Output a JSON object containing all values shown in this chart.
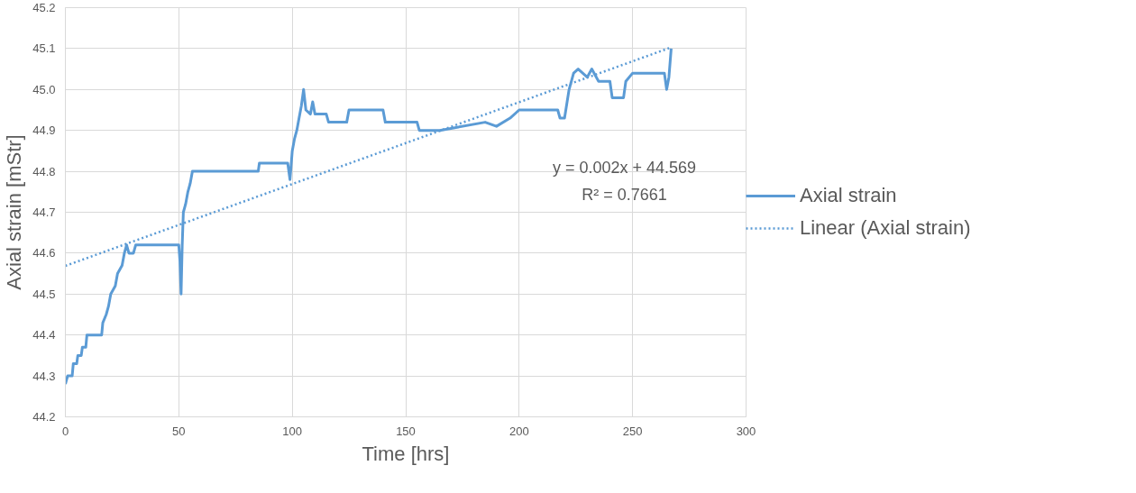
{
  "chart_data": {
    "type": "line",
    "xlabel": "Time [hrs]",
    "ylabel": "Axial strain [mStr]",
    "xlim": [
      0,
      300
    ],
    "xticks": [
      0,
      50,
      100,
      150,
      200,
      250,
      300
    ],
    "ylim": [
      44.2,
      45.2
    ],
    "yticks": [
      {
        "value": 44.2,
        "label": "44.2"
      },
      {
        "value": 44.3,
        "label": "44.3"
      },
      {
        "value": 44.4,
        "label": "44.4"
      },
      {
        "value": 44.5,
        "label": "44.5"
      },
      {
        "value": 44.6,
        "label": "44.6"
      },
      {
        "value": 44.7,
        "label": "44.7"
      },
      {
        "value": 44.8,
        "label": "44.8"
      },
      {
        "value": 44.9,
        "label": "44.9"
      },
      {
        "value": 45.0,
        "label": "45.0"
      },
      {
        "value": 45.1,
        "label": "45.1"
      },
      {
        "value": 45.2,
        "label": "45.2"
      }
    ],
    "grid": true,
    "legend": "right",
    "series": [
      {
        "name": "Axial strain",
        "color": "#5b9bd5",
        "line_style": "solid",
        "x": [
          0,
          1,
          3,
          3.5,
          5,
          5.5,
          7,
          7.5,
          9,
          9.5,
          16,
          16.5,
          18,
          19,
          20,
          22,
          23,
          25,
          26,
          27,
          28,
          30,
          31,
          50,
          50.5,
          51,
          51.5,
          52,
          53,
          54,
          55,
          56,
          57,
          85,
          85.5,
          98,
          99,
          100,
          101,
          102,
          103,
          104,
          105,
          106,
          108,
          109,
          110,
          115,
          116,
          124,
          125,
          140,
          141,
          155,
          156,
          165,
          185,
          190,
          196,
          200,
          217,
          218,
          220,
          222,
          224,
          226,
          230,
          232,
          235,
          240,
          241,
          246,
          247,
          250,
          264,
          265,
          266,
          267
        ],
        "values": [
          44.28,
          44.3,
          44.3,
          44.33,
          44.33,
          44.35,
          44.35,
          44.37,
          44.37,
          44.4,
          44.4,
          44.43,
          44.45,
          44.47,
          44.5,
          44.52,
          44.55,
          44.57,
          44.6,
          44.62,
          44.6,
          44.6,
          44.62,
          44.62,
          44.58,
          44.5,
          44.62,
          44.7,
          44.72,
          44.75,
          44.77,
          44.8,
          44.8,
          44.8,
          44.82,
          44.82,
          44.78,
          44.85,
          44.88,
          44.9,
          44.93,
          44.96,
          45.0,
          44.95,
          44.94,
          44.97,
          44.94,
          44.94,
          44.92,
          44.92,
          44.95,
          44.95,
          44.92,
          44.92,
          44.9,
          44.9,
          44.92,
          44.91,
          44.93,
          44.95,
          44.95,
          44.93,
          44.93,
          45.0,
          45.04,
          45.05,
          45.03,
          45.05,
          45.02,
          45.02,
          44.98,
          44.98,
          45.02,
          45.04,
          45.04,
          45.0,
          45.03,
          45.1
        ]
      },
      {
        "name": "Linear (Axial strain)",
        "color": "#5b9bd5",
        "line_style": "dotted",
        "x": [
          0,
          267
        ],
        "values": [
          44.569,
          45.103
        ]
      }
    ],
    "annotations": [
      "y = 0.002x + 44.569",
      "R² = 0.7661"
    ]
  }
}
